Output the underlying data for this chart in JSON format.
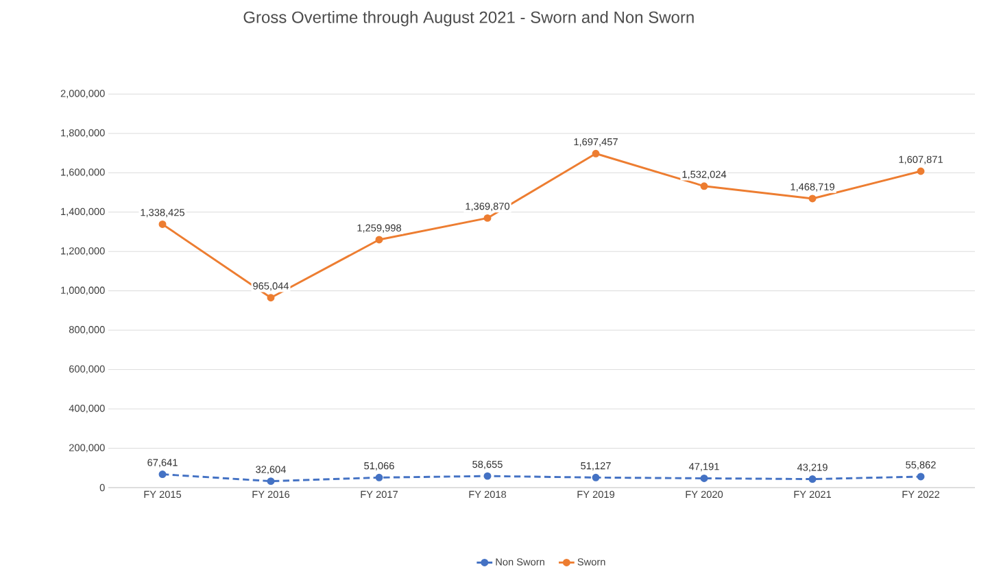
{
  "chart_data": {
    "type": "line",
    "title": "Gross Overtime through August 2021 - Sworn and Non Sworn",
    "categories": [
      "FY 2015",
      "FY 2016",
      "FY 2017",
      "FY 2018",
      "FY 2019",
      "FY 2020",
      "FY 2021",
      "FY 2022"
    ],
    "series": [
      {
        "name": "Non Sworn",
        "color": "#4472c4",
        "line_style": "dashed",
        "values": [
          67641,
          32604,
          51066,
          58655,
          51127,
          47191,
          43219,
          55862
        ],
        "value_labels": [
          "67,641",
          "32,604",
          "51,066",
          "58,655",
          "51,127",
          "47,191",
          "43,219",
          "55,862"
        ]
      },
      {
        "name": "Sworn",
        "color": "#ed7d31",
        "line_style": "solid",
        "values": [
          1338425,
          965044,
          1259998,
          1369870,
          1697457,
          1532024,
          1468719,
          1607871
        ],
        "value_labels": [
          "1,338,425",
          "965,044",
          "1,259,998",
          "1,369,870",
          "1,697,457",
          "1,532,024",
          "1,468,719",
          "1,607,871"
        ]
      }
    ],
    "ylim": [
      0,
      2000000
    ],
    "yticks": [
      {
        "value": 0,
        "label": "0"
      },
      {
        "value": 200000,
        "label": "200,000"
      },
      {
        "value": 400000,
        "label": "400,000"
      },
      {
        "value": 600000,
        "label": "600,000"
      },
      {
        "value": 800000,
        "label": "800,000"
      },
      {
        "value": 1000000,
        "label": "1,000,000"
      },
      {
        "value": 1200000,
        "label": "1,200,000"
      },
      {
        "value": 1400000,
        "label": "1,400,000"
      },
      {
        "value": 1600000,
        "label": "1,600,000"
      },
      {
        "value": 1800000,
        "label": "1,800,000"
      },
      {
        "value": 2000000,
        "label": "2,000,000"
      }
    ],
    "grid": "y",
    "legend": "bottom",
    "marker": "circle"
  }
}
